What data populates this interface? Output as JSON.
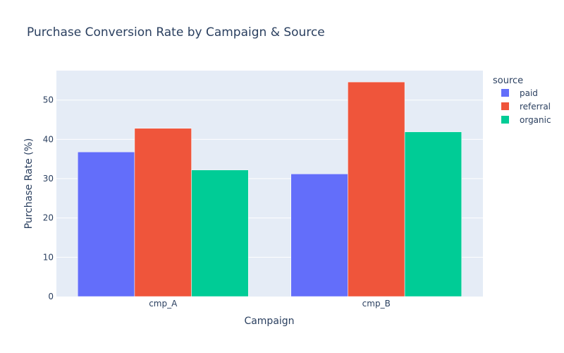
{
  "chart_data": {
    "type": "bar",
    "title": "Purchase Conversion Rate by Campaign & Source",
    "xlabel": "Campaign",
    "ylabel": "Purchase Rate (%)",
    "categories": [
      "cmp_A",
      "cmp_B"
    ],
    "yticks": [
      0,
      10,
      20,
      30,
      40,
      50
    ],
    "ylim": [
      0,
      57.5
    ],
    "legend_title": "source",
    "legend_position": "top-right",
    "grid": true,
    "series": [
      {
        "name": "paid",
        "color": "#636efa",
        "values": [
          36.8,
          31.2
        ]
      },
      {
        "name": "referral",
        "color": "#ef553b",
        "values": [
          42.8,
          54.6
        ]
      },
      {
        "name": "organic",
        "color": "#00cc96",
        "values": [
          32.2,
          41.9
        ]
      }
    ]
  },
  "colors": {
    "plot_background": "#e5ecf6",
    "grid": "#ffffff",
    "text": "#2a3f5f"
  }
}
